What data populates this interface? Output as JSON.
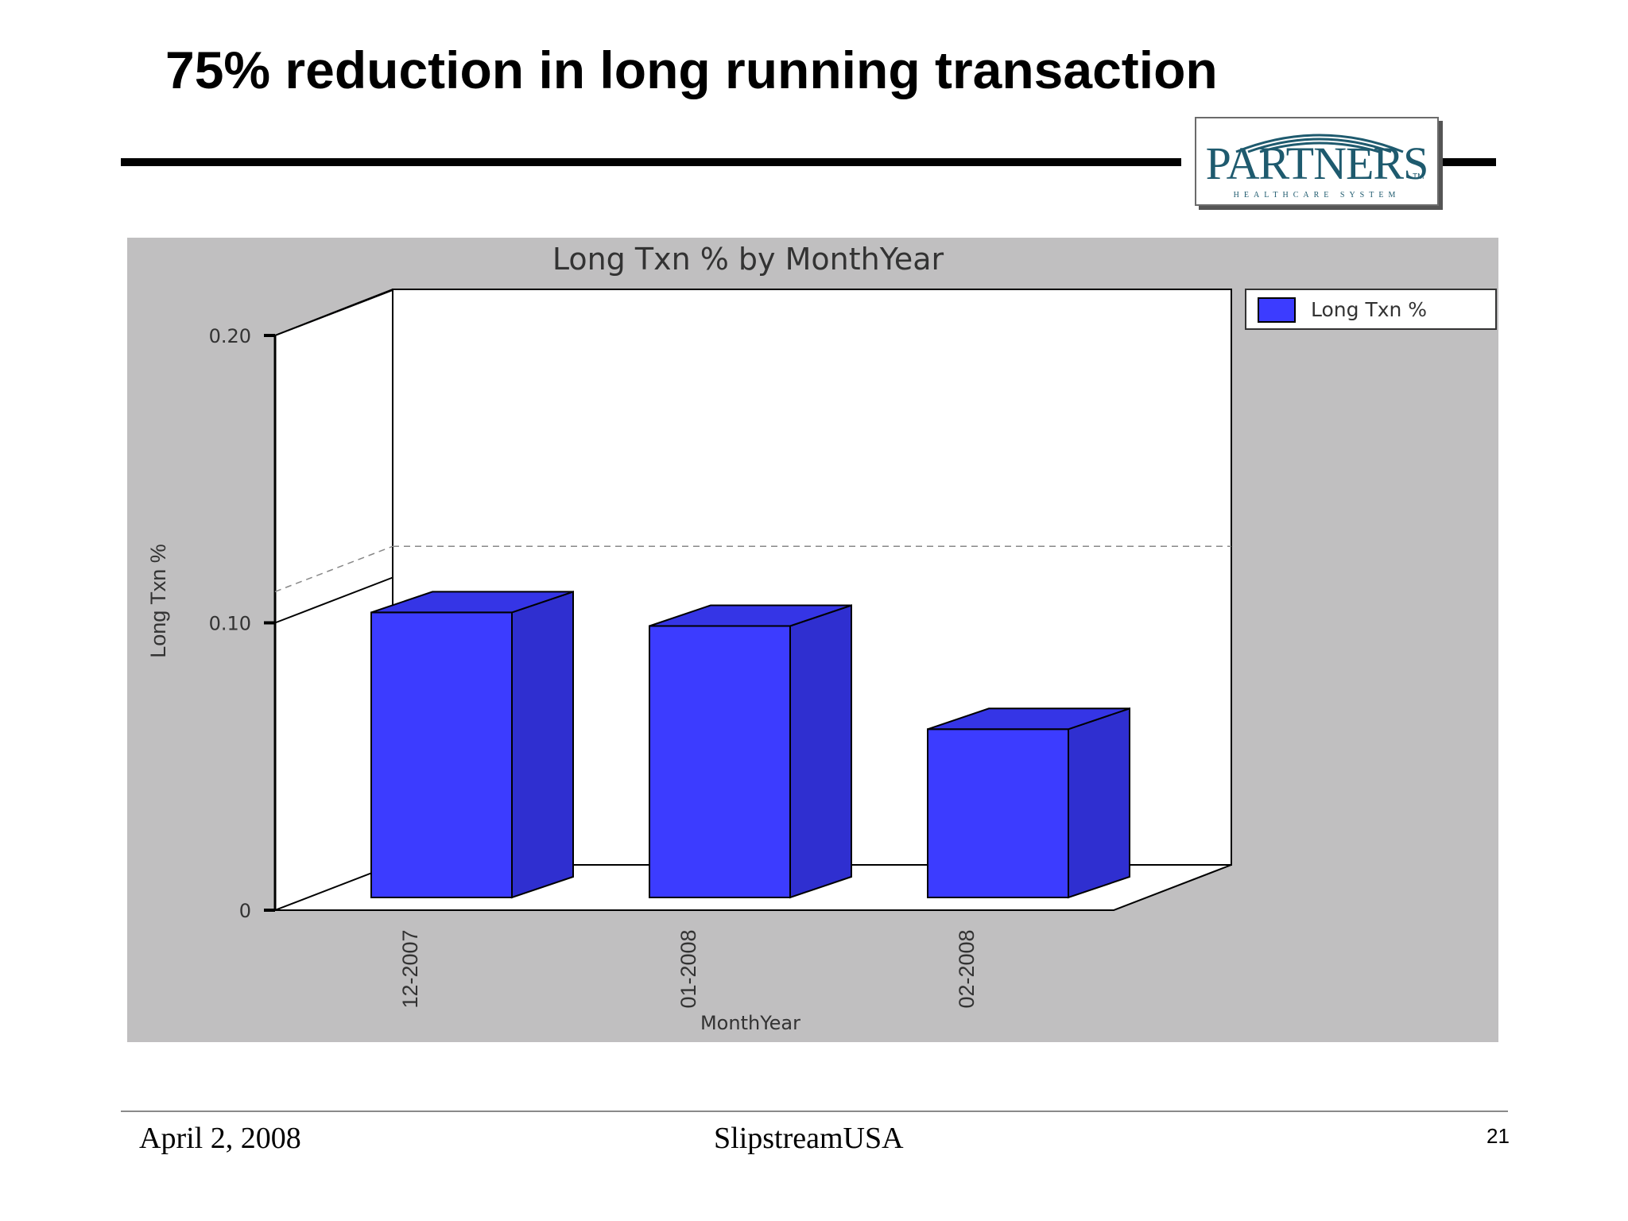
{
  "slide": {
    "title": "75% reduction in long running transaction"
  },
  "logo": {
    "name": "PARTNERS",
    "tm": "TM",
    "subtitle": "HEALTHCARE SYSTEM"
  },
  "chart_data": {
    "type": "bar",
    "title": "Long Txn % by MonthYear",
    "xlabel": "MonthYear",
    "ylabel": "Long Txn %",
    "categories": [
      "12-2007",
      "01-2008",
      "02-2008"
    ],
    "series": [
      {
        "name": "Long Txn %",
        "values": [
          0.105,
          0.1,
          0.062
        ]
      }
    ],
    "y_ticks": [
      "0",
      "0.10",
      "0.20"
    ],
    "y_tick_values": [
      0,
      0.1,
      0.2
    ],
    "ylim": [
      0,
      0.2
    ],
    "reference_line": 0.115,
    "bar_color": "#3c3cff",
    "panel_color": "#c0bfc0",
    "legend_position": "top-right",
    "three_d": true
  },
  "footer": {
    "date": "April 2, 2008",
    "center": "SlipstreamUSA",
    "page": "21"
  }
}
